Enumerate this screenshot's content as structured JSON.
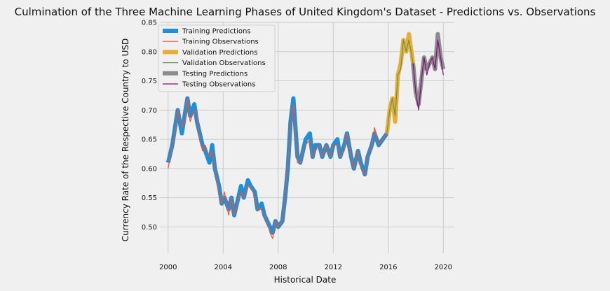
{
  "chart_data": {
    "type": "line",
    "title": "Culmination of the Three Machine Learning Phases of United Kingdom's Dataset - Predictions vs. Observations",
    "xlabel": "Historical Date",
    "ylabel": "Currency Rate of the Respective Country to USD",
    "xlim": [
      1999.4,
      2020.8
    ],
    "ylim": [
      0.455,
      0.85
    ],
    "xticks": [
      2000,
      2004,
      2008,
      2012,
      2016,
      2020
    ],
    "yticks": [
      0.5,
      0.55,
      0.6,
      0.65,
      0.7,
      0.75,
      0.8,
      0.85
    ],
    "ytick_labels": [
      "0.50",
      "0.55",
      "0.60",
      "0.65",
      "0.70",
      "0.75",
      "0.80",
      "0.85"
    ],
    "grid": true,
    "legend_position": "top-left",
    "series": [
      {
        "name": "Training Predictions",
        "color": "#1f8fd6",
        "x": [
          2000.0,
          2000.3,
          2000.5,
          2000.7,
          2001.0,
          2001.2,
          2001.4,
          2001.6,
          2001.9,
          2002.1,
          2002.3,
          2002.5,
          2002.7,
          2003.0,
          2003.2,
          2003.4,
          2003.7,
          2003.9,
          2004.1,
          2004.4,
          2004.6,
          2004.8,
          2005.0,
          2005.3,
          2005.5,
          2005.8,
          2006.0,
          2006.3,
          2006.5,
          2006.8,
          2007.0,
          2007.2,
          2007.4,
          2007.6,
          2007.8,
          2008.0,
          2008.3,
          2008.5,
          2008.7,
          2008.9,
          2009.1,
          2009.4,
          2009.6,
          2009.8,
          2010.0,
          2010.3,
          2010.5,
          2010.7,
          2011.0,
          2011.2,
          2011.5,
          2011.8,
          2012.0,
          2012.3,
          2012.5,
          2012.8,
          2013.0,
          2013.3,
          2013.5,
          2013.8,
          2014.0,
          2014.3,
          2014.5,
          2014.8,
          2015.0,
          2015.3,
          2015.6,
          2015.9
        ],
        "values": [
          0.61,
          0.64,
          0.67,
          0.7,
          0.66,
          0.69,
          0.72,
          0.69,
          0.71,
          0.68,
          0.66,
          0.64,
          0.63,
          0.61,
          0.64,
          0.6,
          0.57,
          0.54,
          0.55,
          0.53,
          0.55,
          0.52,
          0.54,
          0.57,
          0.55,
          0.58,
          0.57,
          0.56,
          0.53,
          0.54,
          0.52,
          0.51,
          0.5,
          0.49,
          0.51,
          0.5,
          0.51,
          0.55,
          0.6,
          0.68,
          0.72,
          0.62,
          0.61,
          0.63,
          0.65,
          0.66,
          0.62,
          0.64,
          0.64,
          0.62,
          0.64,
          0.62,
          0.64,
          0.65,
          0.62,
          0.64,
          0.66,
          0.62,
          0.6,
          0.63,
          0.61,
          0.59,
          0.62,
          0.64,
          0.66,
          0.64,
          0.65,
          0.66
        ]
      },
      {
        "name": "Training Observations",
        "color": "#fc4f30",
        "x": [
          2000.0,
          2000.3,
          2000.5,
          2000.7,
          2001.0,
          2001.2,
          2001.4,
          2001.6,
          2001.9,
          2002.1,
          2002.3,
          2002.5,
          2002.7,
          2003.0,
          2003.2,
          2003.4,
          2003.7,
          2003.9,
          2004.1,
          2004.4,
          2004.6,
          2004.8,
          2005.0,
          2005.3,
          2005.5,
          2005.8,
          2006.0,
          2006.3,
          2006.5,
          2006.8,
          2007.0,
          2007.2,
          2007.4,
          2007.6,
          2007.8,
          2008.0,
          2008.3,
          2008.5,
          2008.7,
          2008.9,
          2009.1,
          2009.4,
          2009.6,
          2009.8,
          2010.0,
          2010.3,
          2010.5,
          2010.7,
          2011.0,
          2011.2,
          2011.5,
          2011.8,
          2012.0,
          2012.3,
          2012.5,
          2012.8,
          2013.0,
          2013.3,
          2013.5,
          2013.8,
          2014.0,
          2014.3,
          2014.5,
          2014.8,
          2015.0,
          2015.3,
          2015.6,
          2015.9
        ],
        "values": [
          0.6,
          0.64,
          0.66,
          0.7,
          0.67,
          0.68,
          0.72,
          0.68,
          0.7,
          0.69,
          0.65,
          0.63,
          0.64,
          0.62,
          0.63,
          0.6,
          0.56,
          0.54,
          0.56,
          0.52,
          0.55,
          0.52,
          0.54,
          0.56,
          0.55,
          0.57,
          0.57,
          0.55,
          0.53,
          0.53,
          0.52,
          0.51,
          0.49,
          0.48,
          0.51,
          0.5,
          0.51,
          0.55,
          0.61,
          0.67,
          0.71,
          0.61,
          0.61,
          0.63,
          0.64,
          0.65,
          0.62,
          0.63,
          0.64,
          0.62,
          0.64,
          0.62,
          0.64,
          0.64,
          0.62,
          0.63,
          0.66,
          0.62,
          0.6,
          0.63,
          0.6,
          0.59,
          0.62,
          0.64,
          0.67,
          0.64,
          0.65,
          0.66
        ]
      },
      {
        "name": "Validation Predictions",
        "color": "#e5ae38",
        "x": [
          2015.9,
          2016.1,
          2016.3,
          2016.5,
          2016.7,
          2016.9,
          2017.1,
          2017.3,
          2017.5,
          2017.8
        ],
        "values": [
          0.66,
          0.7,
          0.72,
          0.68,
          0.76,
          0.78,
          0.82,
          0.8,
          0.83,
          0.78
        ]
      },
      {
        "name": "Validation Observations",
        "color": "#6d904f",
        "x": [
          2015.9,
          2016.1,
          2016.3,
          2016.5,
          2016.7,
          2016.9,
          2017.1,
          2017.3,
          2017.5,
          2017.8
        ],
        "values": [
          0.66,
          0.7,
          0.72,
          0.69,
          0.76,
          0.77,
          0.82,
          0.8,
          0.82,
          0.78
        ]
      },
      {
        "name": "Testing Predictions",
        "color": "#8b8b8b",
        "x": [
          2017.8,
          2018.0,
          2018.2,
          2018.4,
          2018.6,
          2018.8,
          2019.0,
          2019.2,
          2019.4,
          2019.6,
          2019.8,
          2020.0
        ],
        "values": [
          0.78,
          0.73,
          0.71,
          0.75,
          0.79,
          0.77,
          0.78,
          0.79,
          0.77,
          0.83,
          0.79,
          0.77
        ]
      },
      {
        "name": "Testing Observations",
        "color": "#810f7c",
        "x": [
          2017.8,
          2018.0,
          2018.2,
          2018.4,
          2018.6,
          2018.8,
          2019.0,
          2019.2,
          2019.4,
          2019.6,
          2019.8,
          2020.0
        ],
        "values": [
          0.78,
          0.73,
          0.7,
          0.75,
          0.79,
          0.76,
          0.78,
          0.79,
          0.77,
          0.82,
          0.79,
          0.76
        ]
      }
    ]
  }
}
